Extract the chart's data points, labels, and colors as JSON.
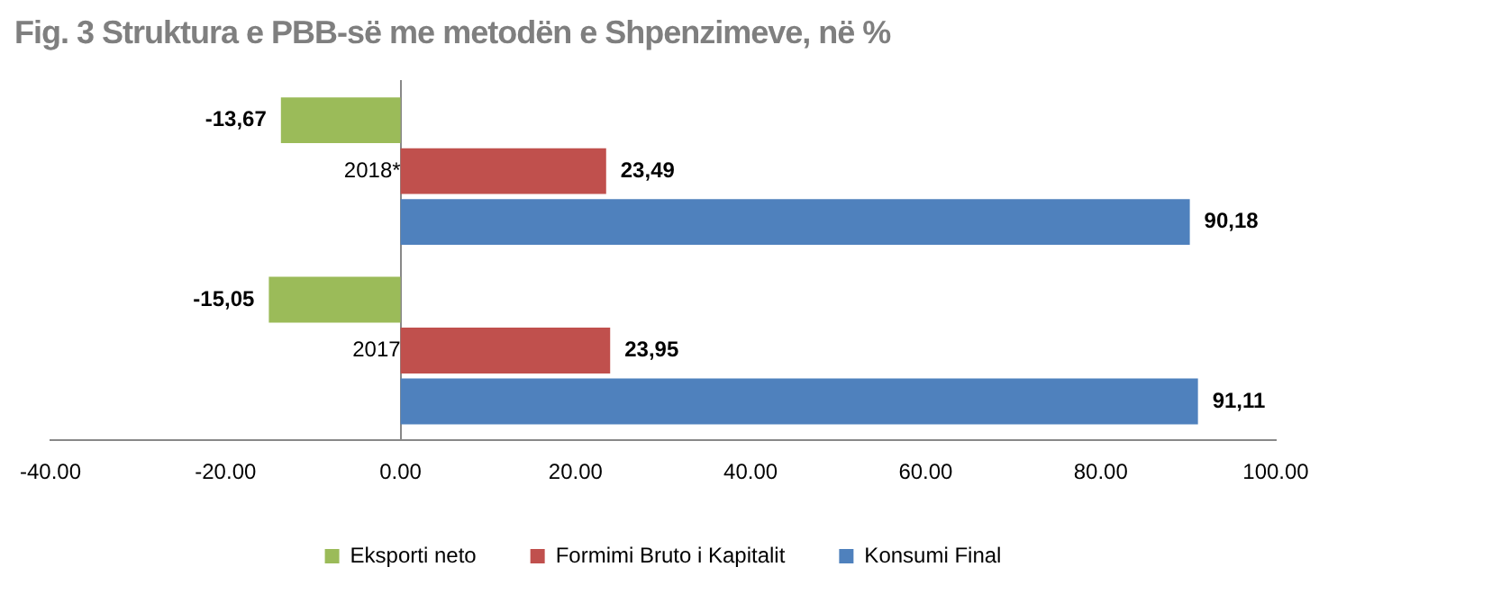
{
  "chart_data": {
    "type": "bar",
    "orientation": "horizontal",
    "title": "Fig. 3 Struktura e PBB-së me metodën e Shpenzimeve, në %",
    "categories": [
      "2018*",
      "2017"
    ],
    "series": [
      {
        "name": "Eksporti neto",
        "color": "#9bbb59",
        "values": [
          -13.67,
          -15.05
        ],
        "value_labels": [
          "-13,67",
          "-15,05"
        ]
      },
      {
        "name": "Formimi Bruto i Kapitalit",
        "color": "#c0504d",
        "values": [
          23.49,
          23.95
        ],
        "value_labels": [
          "23,49",
          "23,95"
        ]
      },
      {
        "name": "Konsumi Final",
        "color": "#4f81bd",
        "values": [
          90.18,
          91.11
        ],
        "value_labels": [
          "90,18",
          "91,11"
        ]
      }
    ],
    "xlim": [
      -40,
      100
    ],
    "xticks": [
      {
        "value": -40,
        "label": "-40.00"
      },
      {
        "value": -20,
        "label": "-20.00"
      },
      {
        "value": 0,
        "label": "0.00"
      },
      {
        "value": 20,
        "label": "20.00"
      },
      {
        "value": 40,
        "label": "40.00"
      },
      {
        "value": 60,
        "label": "60.00"
      },
      {
        "value": 80,
        "label": "80.00"
      },
      {
        "value": 100,
        "label": "100.00"
      }
    ],
    "grid": false,
    "legend": "bottom",
    "marker": "square"
  }
}
